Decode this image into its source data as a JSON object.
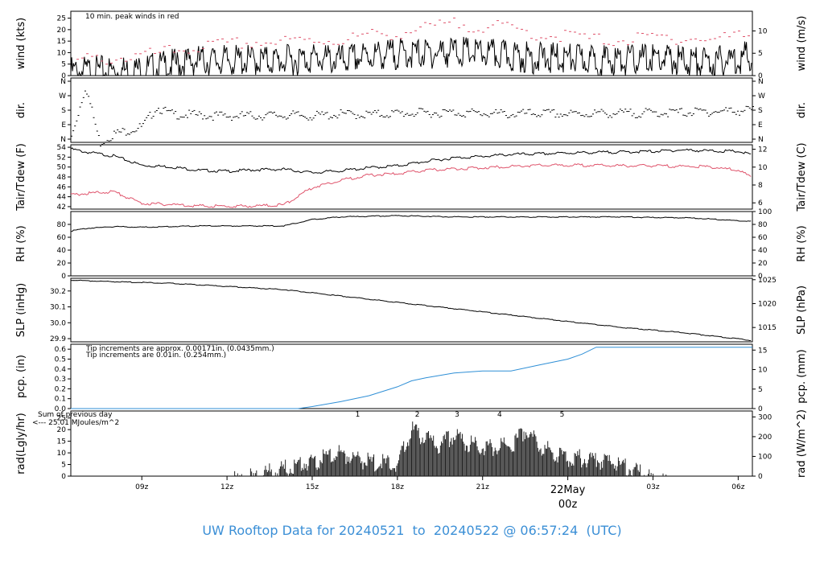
{
  "footer": {
    "prefix": "UW Rooftop Data for",
    "from": "20240521",
    "to_word": "to",
    "to": "20240522",
    "at": "@ 06:57:24",
    "tz": "(UTC)"
  },
  "colors": {
    "peak": "#df536b",
    "series": "#000000",
    "precip_in": "#2f8fd6",
    "rad_note": "#b030d0"
  },
  "chart_data": [
    {
      "type": "line",
      "ylabel_left": "wind (kts)",
      "ylabel_right": "wind (m/s)",
      "yticks_left": [
        0,
        5,
        10,
        15,
        20,
        25
      ],
      "yticks_right": [
        0,
        5,
        10
      ],
      "ylim": [
        0,
        28
      ],
      "annotation": "10 min. peak winds in red",
      "x_hours": [
        6.5,
        8,
        9,
        10,
        11,
        12,
        13,
        14,
        15,
        16,
        17,
        18,
        19,
        20,
        21,
        22,
        23,
        24,
        25,
        26,
        27,
        28,
        29,
        30.5
      ],
      "series": [
        {
          "values": [
            5,
            5.5,
            6,
            8,
            10,
            10,
            10,
            10,
            11,
            10,
            12,
            13,
            13,
            14,
            13,
            12,
            11,
            11,
            10,
            10,
            11,
            10,
            9,
            12
          ]
        },
        {
          "values": [
            8,
            9,
            10,
            12,
            14,
            15,
            16,
            16,
            17,
            17,
            19,
            20,
            22,
            24,
            23,
            22,
            19,
            19,
            17,
            17,
            18,
            18,
            17,
            20
          ]
        }
      ]
    },
    {
      "type": "scatter",
      "ylabel_left": "dir.",
      "ylabel_right": "dir.",
      "yticks_left": [
        "N",
        "E",
        "S",
        "W",
        "N"
      ],
      "yticks_right": [
        "N",
        "E",
        "S",
        "W",
        "N"
      ],
      "ylim": [
        0,
        360
      ],
      "x_hours": [
        6.5,
        7,
        7.5,
        8,
        8.5,
        9,
        9.5,
        10,
        11,
        12,
        13,
        14,
        15,
        16,
        17,
        18,
        19,
        20,
        21,
        22,
        23,
        24,
        25,
        26,
        27,
        28,
        29,
        30,
        30.5
      ],
      "values": [
        40,
        330,
        10,
        60,
        80,
        100,
        210,
        170,
        165,
        160,
        162,
        165,
        160,
        170,
        168,
        175,
        178,
        180,
        175,
        170,
        175,
        170,
        175,
        175,
        178,
        180,
        185,
        190,
        195
      ]
    },
    {
      "type": "line",
      "ylabel_left": "Tair/Tdew (F)",
      "ylabel_right": "Tair/Tdew (C)",
      "yticks_left": [
        42,
        44,
        46,
        48,
        50,
        52,
        54
      ],
      "yticks_right": [
        6,
        8,
        10,
        12
      ],
      "ylim": [
        41.5,
        54.5
      ],
      "x_hours": [
        6.5,
        7,
        8,
        9,
        10,
        11,
        12,
        13,
        14,
        15,
        16,
        17,
        18,
        19,
        20,
        21,
        22,
        23,
        24,
        25,
        26,
        27,
        28,
        29,
        30,
        30.5
      ],
      "series": [
        {
          "name": "Tair",
          "values": [
            53.8,
            53.2,
            52.4,
            50.5,
            50.2,
            49.5,
            49.3,
            49.6,
            49.7,
            49,
            49.4,
            50,
            50.4,
            51.3,
            52,
            52.3,
            52.7,
            52.8,
            53,
            53.1,
            53.2,
            53.3,
            53.6,
            53.4,
            53.3,
            52.6
          ]
        },
        {
          "name": "Tdew",
          "values": [
            44.5,
            44.8,
            45.2,
            42.8,
            42.6,
            42.3,
            42.2,
            42.3,
            42.5,
            46,
            47.5,
            48.5,
            48.8,
            49.5,
            49.8,
            50,
            50.3,
            50.5,
            50.5,
            50.5,
            50.4,
            50.4,
            50.3,
            50.2,
            49.5,
            48
          ]
        }
      ]
    },
    {
      "type": "line",
      "ylabel_left": "RH (%)",
      "ylabel_right": "RH (%)",
      "yticks_left": [
        0,
        20,
        40,
        60,
        80
      ],
      "yticks_right": [
        0,
        20,
        40,
        60,
        80,
        100
      ],
      "ylim": [
        0,
        100
      ],
      "x_hours": [
        6.5,
        7,
        8,
        9,
        10,
        11,
        12,
        13,
        14,
        15,
        16,
        17,
        18,
        19,
        20,
        21,
        22,
        23,
        24,
        25,
        26,
        27,
        28,
        29,
        30,
        30.5
      ],
      "values": [
        70,
        74,
        77,
        76,
        77,
        78,
        78,
        78,
        78,
        88,
        92,
        93,
        94,
        93,
        92,
        92,
        92,
        92,
        92,
        92,
        92,
        91,
        91,
        89,
        86,
        85
      ]
    },
    {
      "type": "line",
      "ylabel_left": "SLP (inHg)",
      "ylabel_right": "SLP (hPa)",
      "yticks_left": [
        29.9,
        30.0,
        30.1,
        30.2
      ],
      "yticks_right": [
        1015,
        1020,
        1025
      ],
      "ylim": [
        29.88,
        30.28
      ],
      "x_hours": [
        6.5,
        8,
        10,
        12,
        14,
        16,
        18,
        20,
        22,
        24,
        26,
        28,
        30,
        30.5
      ],
      "values": [
        30.27,
        30.26,
        30.25,
        30.23,
        30.21,
        30.17,
        30.13,
        30.09,
        30.05,
        30.01,
        29.97,
        29.94,
        29.9,
        29.89
      ]
    },
    {
      "type": "line",
      "ylabel_left": "pcp. (in)",
      "ylabel_right": "pcp. (mm)",
      "yticks_left": [
        0.0,
        0.1,
        0.2,
        0.3,
        0.4,
        0.5,
        0.6
      ],
      "yticks_right": [
        0,
        5,
        10,
        15
      ],
      "ylim": [
        0,
        0.65
      ],
      "annotations": [
        "Tip increments are approx. 0.00171in. (0.0435mm.)",
        "Tip increments are 0.01in. (0.254mm.)"
      ],
      "x_hours": [
        6.5,
        14.5,
        15,
        16,
        17,
        18,
        18.5,
        19,
        20,
        21,
        22,
        23,
        24,
        24.5,
        25,
        26,
        27,
        28,
        29,
        30,
        30.5
      ],
      "values": [
        0,
        0,
        0.02,
        0.07,
        0.13,
        0.22,
        0.28,
        0.31,
        0.36,
        0.38,
        0.38,
        0.44,
        0.5,
        0.55,
        0.62,
        0.62,
        0.62,
        0.62,
        0.62,
        0.62,
        0.62
      ]
    },
    {
      "type": "area",
      "ylabel_left": "rad(Lgly/hr)",
      "ylabel_right": "rad (W/m^2)",
      "yticks_left": [
        0,
        5,
        10,
        15,
        20,
        25
      ],
      "yticks_right": [
        0,
        100,
        200,
        300
      ],
      "ylim": [
        0,
        28
      ],
      "notes": [
        "Sum of previous day",
        "<--- 25.01 MJoules/m^2"
      ],
      "markers": [
        "1",
        "2",
        "3",
        "4",
        "5"
      ],
      "x_hours": [
        6.5,
        12.2,
        13,
        14,
        14.5,
        15,
        16,
        17,
        18,
        18.5,
        19,
        19.5,
        20,
        20.5,
        21,
        22,
        22.5,
        23,
        24,
        25,
        25.5,
        26,
        27,
        27.5,
        30.5
      ],
      "values": [
        0,
        0,
        2,
        5,
        7,
        8,
        12,
        8,
        7,
        22,
        18,
        15,
        20,
        16,
        14,
        15,
        22,
        15,
        10,
        9,
        8,
        6,
        1,
        0,
        0
      ]
    }
  ],
  "x_axis": {
    "ticks": [
      "09z",
      "12z",
      "15z",
      "18z",
      "21z",
      "00z",
      "03z",
      "06z"
    ],
    "date_label": "22May",
    "date_sub": "00z"
  }
}
